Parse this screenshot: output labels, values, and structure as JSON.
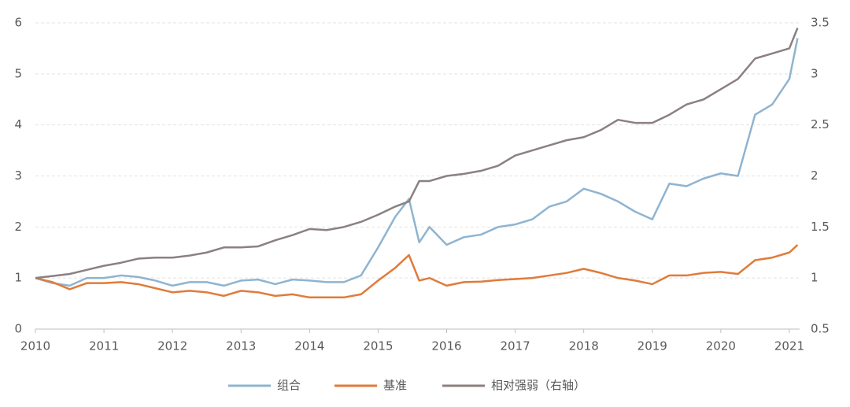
{
  "chart_data": {
    "type": "line",
    "x": [
      2010,
      2010.25,
      2010.5,
      2010.75,
      2011,
      2011.25,
      2011.5,
      2011.75,
      2012,
      2012.25,
      2012.5,
      2012.75,
      2013,
      2013.25,
      2013.5,
      2013.75,
      2014,
      2014.25,
      2014.5,
      2014.75,
      2015,
      2015.25,
      2015.45,
      2015.6,
      2015.75,
      2016,
      2016.25,
      2016.5,
      2016.75,
      2017,
      2017.25,
      2017.5,
      2017.75,
      2018,
      2018.25,
      2018.5,
      2018.75,
      2019,
      2019.25,
      2019.5,
      2019.75,
      2020,
      2020.25,
      2020.5,
      2020.75,
      2021,
      2021.12
    ],
    "series": [
      {
        "name": "组合",
        "color": "#8fb4d0",
        "values": [
          1.0,
          0.9,
          0.85,
          1.0,
          1.0,
          1.05,
          1.02,
          0.95,
          0.85,
          0.92,
          0.92,
          0.85,
          0.95,
          0.97,
          0.88,
          0.97,
          0.95,
          0.92,
          0.92,
          1.05,
          1.6,
          2.2,
          2.55,
          1.7,
          2.0,
          1.65,
          1.8,
          1.85,
          2.0,
          2.05,
          2.15,
          2.4,
          2.5,
          2.75,
          2.65,
          2.5,
          2.3,
          2.15,
          2.85,
          2.8,
          2.95,
          3.05,
          3.0,
          4.2,
          4.4,
          4.9,
          5.7
        ]
      },
      {
        "name": "基准",
        "color": "#e07b3a",
        "values": [
          1.0,
          0.92,
          0.78,
          0.9,
          0.9,
          0.92,
          0.88,
          0.8,
          0.72,
          0.75,
          0.72,
          0.65,
          0.75,
          0.72,
          0.65,
          0.68,
          0.62,
          0.62,
          0.62,
          0.68,
          0.95,
          1.2,
          1.45,
          0.95,
          1.0,
          0.85,
          0.92,
          0.93,
          0.96,
          0.98,
          1.0,
          1.05,
          1.1,
          1.18,
          1.1,
          1.0,
          0.95,
          0.88,
          1.05,
          1.05,
          1.1,
          1.12,
          1.08,
          1.35,
          1.4,
          1.5,
          1.65
        ]
      },
      {
        "name": "相对强弱（右轴）",
        "color": "#8c8080",
        "axis": "y2",
        "values": [
          1.0,
          1.02,
          1.04,
          1.08,
          1.12,
          1.15,
          1.19,
          1.2,
          1.2,
          1.22,
          1.25,
          1.3,
          1.3,
          1.31,
          1.37,
          1.42,
          1.48,
          1.47,
          1.5,
          1.55,
          1.62,
          1.7,
          1.75,
          1.95,
          1.95,
          2.0,
          2.02,
          2.05,
          2.1,
          2.2,
          2.25,
          2.3,
          2.35,
          2.38,
          2.45,
          2.55,
          2.52,
          2.52,
          2.6,
          2.7,
          2.75,
          2.85,
          2.95,
          3.15,
          3.2,
          3.25,
          3.45
        ]
      }
    ],
    "xlim": [
      2010,
      2021.15
    ],
    "xticks": [
      2010,
      2011,
      2012,
      2013,
      2014,
      2015,
      2016,
      2017,
      2018,
      2019,
      2020,
      2021
    ],
    "ylim": [
      0,
      6
    ],
    "yticks": [
      0,
      1,
      2,
      3,
      4,
      5,
      6
    ],
    "y2lim": [
      0.5,
      3.5
    ],
    "y2ticks": [
      0.5,
      1,
      1.5,
      2,
      2.5,
      3,
      3.5
    ],
    "grid": true,
    "legend": "bottom"
  }
}
